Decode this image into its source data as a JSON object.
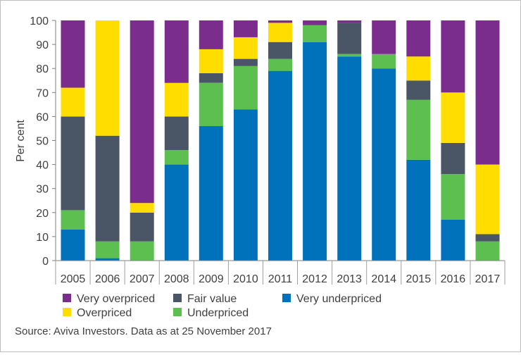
{
  "chart_data": {
    "type": "bar",
    "stacked": true,
    "ylabel": "Per cent",
    "xlabel": "",
    "ylim": [
      0,
      100
    ],
    "yticks": [
      0,
      10,
      20,
      30,
      40,
      50,
      60,
      70,
      80,
      90,
      100
    ],
    "categories": [
      "2005",
      "2006",
      "2007",
      "2008",
      "2009",
      "2010",
      "2011",
      "2012",
      "2013",
      "2014",
      "2015",
      "2016",
      "2017"
    ],
    "series": [
      {
        "name": "Very underpriced",
        "color": "#0072bc",
        "values": [
          13,
          1,
          0,
          40,
          56,
          63,
          79,
          91,
          85,
          80,
          42,
          17,
          0
        ]
      },
      {
        "name": "Underpriced",
        "color": "#5cbf4f",
        "values": [
          8,
          7,
          8,
          6,
          18,
          18,
          5,
          7,
          1,
          6,
          25,
          19,
          8
        ]
      },
      {
        "name": "Fair value",
        "color": "#4a5666",
        "values": [
          39,
          44,
          12,
          14,
          4,
          3,
          7,
          0,
          13,
          0,
          8,
          13,
          3
        ]
      },
      {
        "name": "Overpriced",
        "color": "#ffdd00",
        "values": [
          12,
          48,
          4,
          14,
          10,
          9,
          8,
          0,
          0,
          0,
          10,
          21,
          29
        ]
      },
      {
        "name": "Very overpriced",
        "color": "#7b2d8e",
        "values": [
          28,
          0,
          76,
          26,
          12,
          7,
          1,
          2,
          1,
          14,
          15,
          30,
          60
        ]
      }
    ],
    "legend": {
      "placement": "bottom-left",
      "order": [
        "Very overpriced",
        "Fair value",
        "Very underpriced",
        "Overpriced",
        "Underpriced"
      ]
    },
    "grid": false,
    "source": "Source: Aviva Investors. Data as at 25 November 2017"
  }
}
